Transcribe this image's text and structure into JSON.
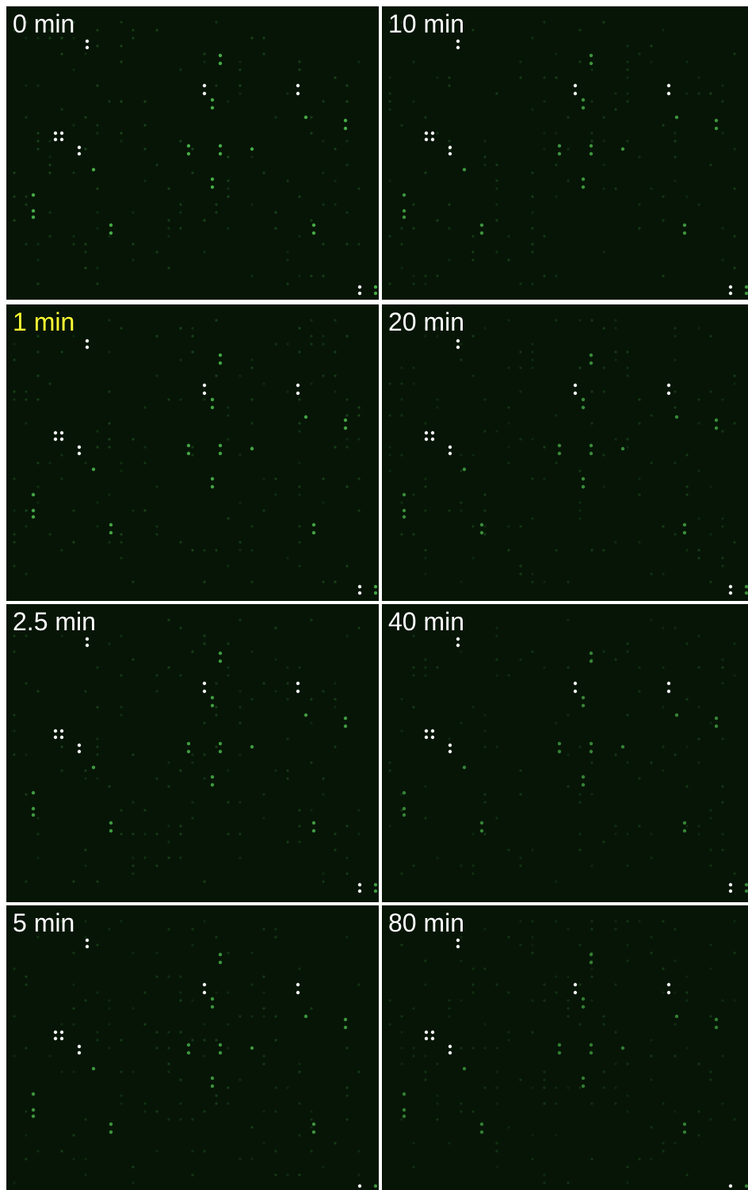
{
  "panels": [
    {
      "label": "0 min"
    },
    {
      "label": "10 min"
    },
    {
      "label": "1 min"
    },
    {
      "label": "20 min"
    },
    {
      "label": "2.5 min"
    },
    {
      "label": "40 min"
    },
    {
      "label": "5 min"
    },
    {
      "label": "80 min"
    }
  ]
}
